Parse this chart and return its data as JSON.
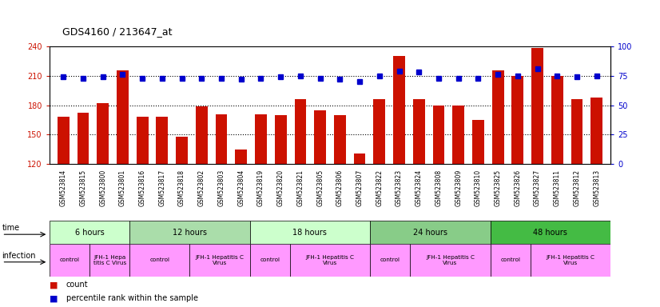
{
  "title": "GDS4160 / 213647_at",
  "samples": [
    "GSM523814",
    "GSM523815",
    "GSM523800",
    "GSM523801",
    "GSM523816",
    "GSM523817",
    "GSM523818",
    "GSM523802",
    "GSM523803",
    "GSM523804",
    "GSM523819",
    "GSM523820",
    "GSM523821",
    "GSM523805",
    "GSM523806",
    "GSM523807",
    "GSM523822",
    "GSM523823",
    "GSM523824",
    "GSM523808",
    "GSM523809",
    "GSM523810",
    "GSM523825",
    "GSM523826",
    "GSM523827",
    "GSM523811",
    "GSM523812",
    "GSM523813"
  ],
  "counts": [
    168,
    172,
    182,
    215,
    168,
    168,
    148,
    179,
    171,
    135,
    171,
    170,
    186,
    175,
    170,
    131,
    186,
    230,
    186,
    180,
    180,
    165,
    215,
    210,
    238,
    210,
    186,
    188
  ],
  "percentiles": [
    74,
    73,
    74,
    76,
    73,
    73,
    73,
    73,
    73,
    72,
    73,
    74,
    75,
    73,
    72,
    70,
    75,
    79,
    78,
    73,
    73,
    73,
    76,
    75,
    81,
    75,
    74,
    75
  ],
  "ylim_left": [
    120,
    240
  ],
  "ylim_right": [
    0,
    100
  ],
  "yticks_left": [
    120,
    150,
    180,
    210,
    240
  ],
  "yticks_right": [
    0,
    25,
    50,
    75,
    100
  ],
  "bar_color": "#CC1100",
  "dot_color": "#0000CC",
  "bg_color": "#FFFFFF",
  "plot_bg": "#FFFFFF",
  "time_groups": [
    {
      "label": "6 hours",
      "start": 0,
      "end": 4
    },
    {
      "label": "12 hours",
      "start": 4,
      "end": 10
    },
    {
      "label": "18 hours",
      "start": 10,
      "end": 16
    },
    {
      "label": "24 hours",
      "start": 16,
      "end": 22
    },
    {
      "label": "48 hours",
      "start": 22,
      "end": 28
    }
  ],
  "time_colors": [
    "#CCFFCC",
    "#AADDAA",
    "#CCFFCC",
    "#88CC88",
    "#44BB44"
  ],
  "infection_groups": [
    {
      "label": "control",
      "start": 0,
      "end": 2
    },
    {
      "label": "JFH-1 Hepa\ntitis C Virus",
      "start": 2,
      "end": 4
    },
    {
      "label": "control",
      "start": 4,
      "end": 7
    },
    {
      "label": "JFH-1 Hepatitis C\nVirus",
      "start": 7,
      "end": 10
    },
    {
      "label": "control",
      "start": 10,
      "end": 12
    },
    {
      "label": "JFH-1 Hepatitis C\nVirus",
      "start": 12,
      "end": 16
    },
    {
      "label": "control",
      "start": 16,
      "end": 18
    },
    {
      "label": "JFH-1 Hepatitis C\nVirus",
      "start": 18,
      "end": 22
    },
    {
      "label": "control",
      "start": 22,
      "end": 24
    },
    {
      "label": "JFH-1 Hepatitis C\nVirus",
      "start": 24,
      "end": 28
    }
  ],
  "inf_color": "#FF99FF",
  "grid_color": "#000000",
  "label_color_left": "#CC1100",
  "label_color_right": "#0000CC",
  "grid_yticks": [
    150,
    180,
    210
  ]
}
